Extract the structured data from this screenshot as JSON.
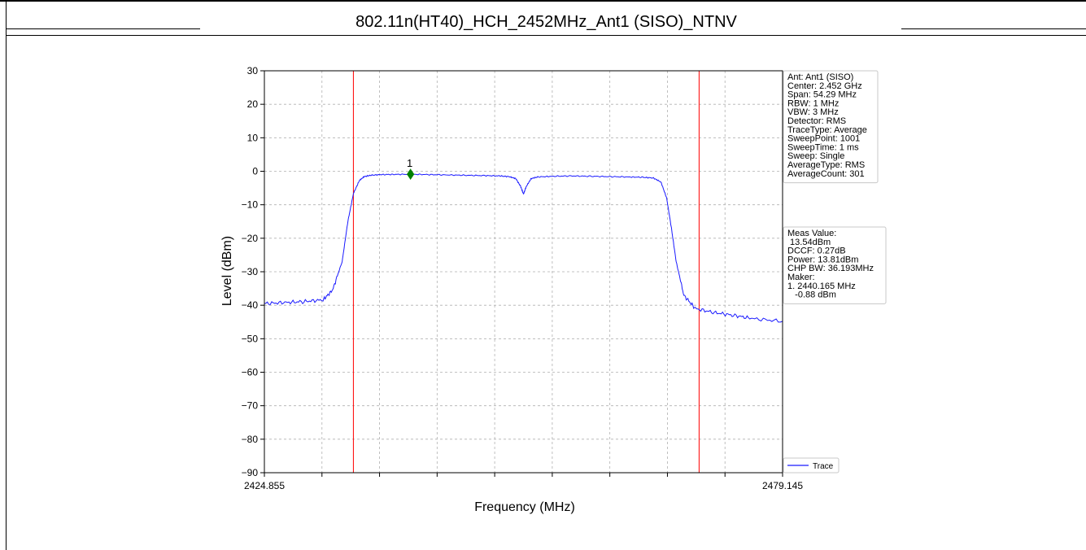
{
  "page": {
    "title": "802.11n(HT40)_HCH_2452MHz_Ant1 (SISO)_NTNV"
  },
  "chart_data": {
    "type": "line",
    "xlabel": "Frequency (MHz)",
    "ylabel": "Level (dBm)",
    "xlim": [
      2424.855,
      2479.145
    ],
    "ylim": [
      -90,
      30
    ],
    "x_tick_labels": [
      "2424.855",
      "2479.145"
    ],
    "y_ticks": [
      30,
      20,
      10,
      0,
      -10,
      -20,
      -30,
      -40,
      -50,
      -60,
      -70,
      -80,
      -90
    ],
    "grid": true,
    "legend": {
      "placement": "bottom-right",
      "entries": [
        "Trace"
      ]
    },
    "series": [
      {
        "name": "Trace",
        "color": "#1a1aff",
        "x": [
          2424.855,
          2427.0,
          2429.0,
          2431.0,
          2432.0,
          2433.0,
          2433.6,
          2434.2,
          2434.8,
          2435.3,
          2436.0,
          2437.0,
          2438.5,
          2440.165,
          2442.0,
          2444.0,
          2446.0,
          2448.0,
          2449.5,
          2450.5,
          2451.2,
          2451.7,
          2452.0,
          2452.3,
          2452.8,
          2453.5,
          2455.0,
          2457.0,
          2459.0,
          2461.0,
          2463.0,
          2464.5,
          2465.6,
          2466.4,
          2467.0,
          2467.5,
          2468.0,
          2468.8,
          2470.0,
          2472.0,
          2474.0,
          2476.0,
          2479.145
        ],
        "values": [
          -39.5,
          -39.2,
          -38.9,
          -38.4,
          -35.5,
          -27.0,
          -15.0,
          -6.5,
          -2.8,
          -1.6,
          -1.2,
          -1.0,
          -0.95,
          -0.88,
          -1.0,
          -1.1,
          -1.2,
          -1.3,
          -1.4,
          -1.6,
          -2.2,
          -4.5,
          -6.8,
          -4.5,
          -2.2,
          -1.7,
          -1.5,
          -1.4,
          -1.5,
          -1.6,
          -1.7,
          -1.8,
          -2.0,
          -3.2,
          -8.0,
          -17.0,
          -27.0,
          -37.0,
          -41.0,
          -42.2,
          -43.0,
          -44.0,
          -44.8
        ]
      }
    ],
    "vlines": [
      {
        "x": 2434.18,
        "color": "#ff0000"
      },
      {
        "x": 2470.4,
        "color": "#ff0000"
      }
    ],
    "marker": {
      "label": "1",
      "x": 2440.165,
      "y": -0.88,
      "color": "#008000"
    },
    "info_box": [
      "Ant: Ant1 (SISO)",
      "Center: 2.452 GHz",
      "Span: 54.29 MHz",
      "RBW: 1 MHz",
      "VBW: 3 MHz",
      "Detector: RMS",
      "TraceType: Average",
      "SweepPoint: 1001",
      "SweepTime: 1 ms",
      "Sweep: Single",
      "AverageType: RMS",
      "AverageCount: 301"
    ],
    "meas_box": [
      "Meas Value:",
      " 13.54dBm",
      "DCCF: 0.27dB",
      "Power: 13.81dBm",
      "CHP BW: 36.193MHz",
      "Maker:",
      "1. 2440.165 MHz",
      "   -0.88 dBm"
    ]
  }
}
